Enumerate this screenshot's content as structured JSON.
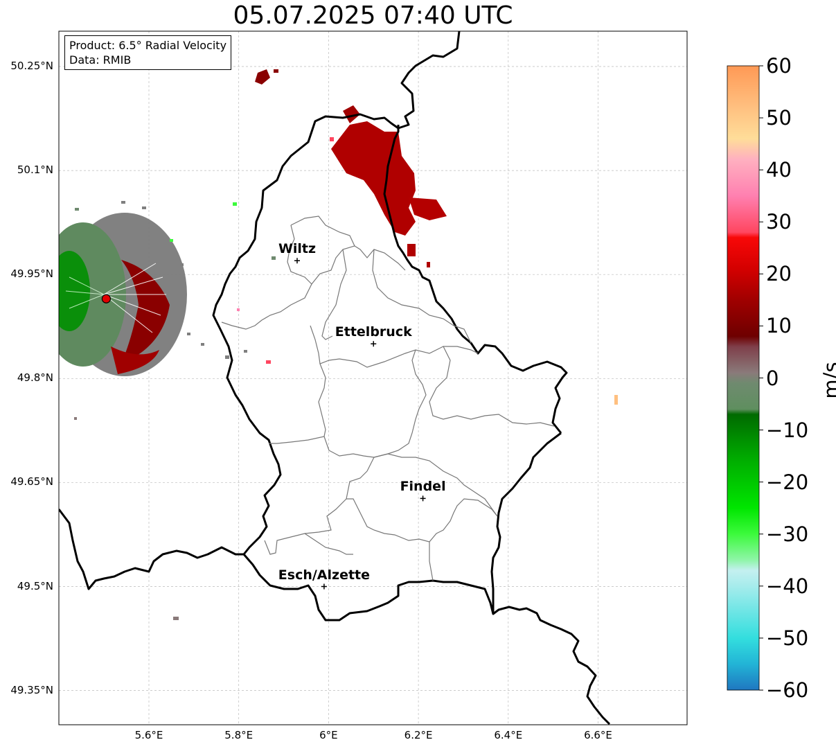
{
  "title": "05.07.2025 07:40 UTC",
  "info": {
    "product": "Product: 6.5° Radial Velocity",
    "data": "Data: RMIB"
  },
  "axes": {
    "lat_ticks": [
      "50.25°N",
      "50.1°N",
      "49.95°N",
      "49.8°N",
      "49.65°N",
      "49.5°N",
      "49.35°N"
    ],
    "lon_ticks": [
      "5.6°E",
      "5.8°E",
      "6°E",
      "6.2°E",
      "6.4°E",
      "6.6°E"
    ],
    "lat_range": [
      49.3,
      50.3
    ],
    "lon_range": [
      5.4,
      6.8
    ],
    "grid": true
  },
  "cities": [
    {
      "name": "Wiltz",
      "lon": 5.93,
      "lat": 49.97
    },
    {
      "name": "Ettelbruck",
      "lon": 6.1,
      "lat": 49.85
    },
    {
      "name": "Findel",
      "lon": 6.21,
      "lat": 49.627
    },
    {
      "name": "Esch/Alzette",
      "lon": 5.99,
      "lat": 49.5
    }
  ],
  "radar": {
    "lon": 5.505,
    "lat": 49.915,
    "color": "#e00000"
  },
  "colorbar": {
    "label": "m/s",
    "min": -60,
    "max": 60,
    "ticks": [
      "60",
      "50",
      "40",
      "30",
      "20",
      "10",
      "0",
      "−10",
      "−20",
      "−30",
      "−40",
      "−50",
      "−60"
    ],
    "stops": [
      {
        "v": -60,
        "c": "#1f77c0"
      },
      {
        "v": -55,
        "c": "#22b4d6"
      },
      {
        "v": -50,
        "c": "#33dede"
      },
      {
        "v": -40,
        "c": "#a6ecec"
      },
      {
        "v": -37,
        "c": "#c4f0f0"
      },
      {
        "v": -35,
        "c": "#8ff5a8"
      },
      {
        "v": -30,
        "c": "#3cfa3c"
      },
      {
        "v": -25,
        "c": "#00e600"
      },
      {
        "v": -15,
        "c": "#00a800"
      },
      {
        "v": -7,
        "c": "#006a00"
      },
      {
        "v": -6,
        "c": "#5f8f5f"
      },
      {
        "v": -1,
        "c": "#6f8a6f"
      },
      {
        "v": 1,
        "c": "#8a7a7a"
      },
      {
        "v": 6,
        "c": "#7f3f4a"
      },
      {
        "v": 8,
        "c": "#6e0000"
      },
      {
        "v": 15,
        "c": "#a00000"
      },
      {
        "v": 21,
        "c": "#d40000"
      },
      {
        "v": 27,
        "c": "#f80808"
      },
      {
        "v": 28,
        "c": "#ff4660"
      },
      {
        "v": 35,
        "c": "#ff80b0"
      },
      {
        "v": 42,
        "c": "#ffb0c0"
      },
      {
        "v": 46,
        "c": "#ffdd99"
      },
      {
        "v": 52,
        "c": "#ffc080"
      },
      {
        "v": 60,
        "c": "#ff9955"
      }
    ]
  }
}
